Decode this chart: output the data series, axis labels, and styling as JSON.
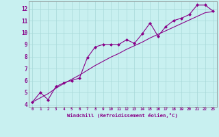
{
  "line1_x": [
    0,
    1,
    2,
    3,
    4,
    5,
    6,
    7,
    8,
    9,
    10,
    11,
    12,
    13,
    14,
    15,
    16,
    17,
    18,
    19,
    20,
    21,
    22,
    23
  ],
  "line1_y": [
    4.2,
    5.0,
    4.4,
    5.5,
    5.8,
    6.0,
    6.2,
    7.9,
    8.8,
    9.0,
    9.0,
    9.0,
    9.4,
    9.1,
    9.9,
    10.8,
    9.7,
    10.5,
    11.0,
    11.2,
    11.5,
    12.3,
    12.3,
    11.8
  ],
  "line2_x": [
    0,
    1,
    2,
    3,
    4,
    5,
    6,
    7,
    8,
    9,
    10,
    11,
    12,
    13,
    14,
    15,
    16,
    17,
    18,
    19,
    20,
    21,
    22,
    23
  ],
  "line2_y": [
    4.2,
    4.55,
    4.9,
    5.35,
    5.75,
    6.1,
    6.45,
    6.85,
    7.25,
    7.6,
    7.95,
    8.25,
    8.6,
    8.9,
    9.2,
    9.55,
    9.85,
    10.15,
    10.45,
    10.75,
    11.05,
    11.35,
    11.65,
    11.75
  ],
  "line_color": "#880088",
  "bg_color": "#c8f0f0",
  "grid_color": "#a8d8d8",
  "xlabel": "Windchill (Refroidissement éolien,°C)",
  "ylim": [
    3.8,
    12.6
  ],
  "xlim": [
    -0.5,
    23.5
  ],
  "yticks": [
    4,
    5,
    6,
    7,
    8,
    9,
    10,
    11,
    12
  ],
  "xticks": [
    0,
    1,
    2,
    3,
    4,
    5,
    6,
    7,
    8,
    9,
    10,
    11,
    12,
    13,
    14,
    15,
    16,
    17,
    18,
    19,
    20,
    21,
    22,
    23
  ],
  "marker": "D",
  "marker_size": 2.0,
  "line_width": 0.8
}
